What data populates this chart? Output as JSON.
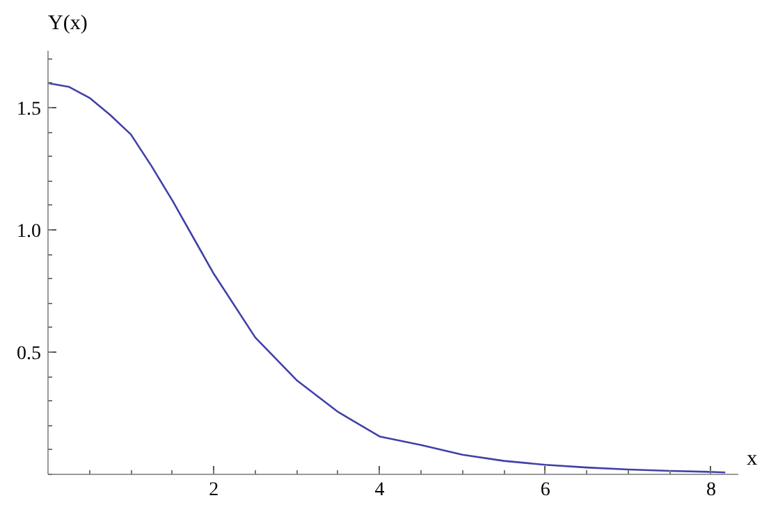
{
  "chart_data": {
    "type": "line",
    "xlabel": "x",
    "ylabel": "Y(x)",
    "xlim": [
      0,
      8.33
    ],
    "ylim": [
      0,
      1.73
    ],
    "xticks": [
      2,
      4,
      6,
      8
    ],
    "yticks": [
      0.5,
      {
        "value": 1,
        "label": "1.0"
      },
      1.5
    ],
    "grid": false,
    "marker": "none",
    "line_style": "solid",
    "series": [
      {
        "color": "#4040a8",
        "x": [
          0,
          0.25,
          0.5,
          0.75,
          1,
          1.25,
          1.5,
          1.75,
          2,
          2.5,
          3,
          3.5,
          4,
          4.5,
          5,
          5.5,
          6,
          6.5,
          7,
          7.5,
          8,
          8.17
        ],
        "values": [
          1.6,
          1.585,
          1.54,
          1.47,
          1.39,
          1.26,
          1.12,
          0.97,
          0.82,
          0.56,
          0.385,
          0.255,
          0.155,
          0.12,
          0.08,
          0.055,
          0.039,
          0.028,
          0.02,
          0.014,
          0.01,
          0.008
        ]
      }
    ]
  }
}
